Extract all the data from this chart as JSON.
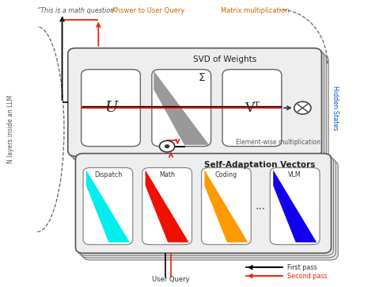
{
  "bg_color": "#ffffff",
  "title_svd": "SVD of Weights",
  "title_sav": "Self-Adaptation Vectors",
  "label_u": "U",
  "label_sigma": "Σ",
  "label_vt": "Vᵀ",
  "label_dispatch": "Dispatch",
  "label_math": "Math",
  "label_coding": "Coding",
  "label_vlm": "VLM",
  "label_dots": "...",
  "text_this_is": "“This is a math question”",
  "text_answer": "Answer to User Query",
  "text_matrix_mult": "Matrix multiplication",
  "text_hidden": "Hidden States",
  "text_element_wise": "Element-wise multiplication",
  "text_n_layers": "N layers inside an LLM",
  "text_user_query": "User Query",
  "text_first_pass": "First pass",
  "text_second_pass": "Second pass",
  "color_first_pass": "#000000",
  "color_second_pass": "#ee2200",
  "color_dispatch": "#00eeee",
  "color_math": "#ee1100",
  "color_coding": "#ff9900",
  "color_vlm": "#1100ee",
  "color_sigma_diag": "#888888",
  "color_border": "#555555",
  "color_svd_bg": "#eeeeee",
  "color_sav_bg": "#eeeeee",
  "color_text_orange": "#cc6600",
  "color_text_blue": "#0055cc"
}
